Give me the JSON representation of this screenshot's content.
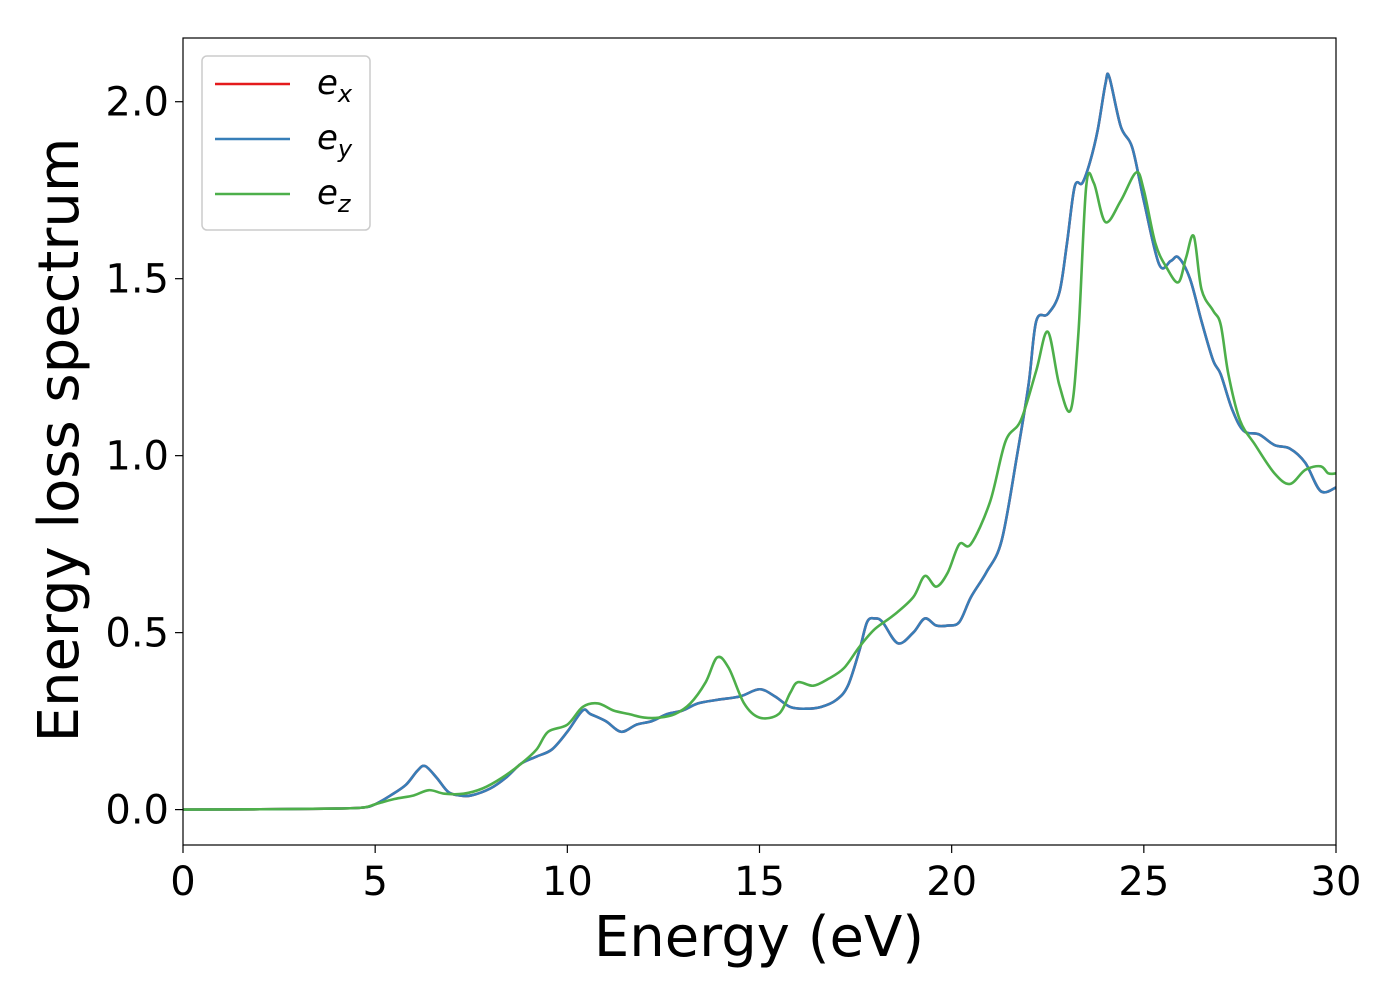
{
  "chart_data": {
    "type": "line",
    "xlabel": "Energy (eV)",
    "ylabel": "Energy loss spectrum",
    "xlim": [
      0,
      30
    ],
    "ylim": [
      -0.1,
      2.18
    ],
    "xticks": [
      0,
      5,
      10,
      15,
      20,
      25,
      30
    ],
    "xtick_labels": [
      "0",
      "5",
      "10",
      "15",
      "20",
      "25",
      "30"
    ],
    "yticks": [
      0.0,
      0.5,
      1.0,
      1.5,
      2.0
    ],
    "ytick_labels": [
      "0.0",
      "0.5",
      "1.0",
      "1.5",
      "2.0"
    ],
    "grid": false,
    "legend_position": "top-left",
    "series": [
      {
        "name": "e",
        "subscript": "x",
        "color": "#e41a1c",
        "x": [
          0,
          2,
          4,
          4.7,
          5.0,
          5.4,
          5.8,
          6.1,
          6.3,
          6.6,
          6.9,
          7.2,
          7.5,
          8.0,
          8.4,
          8.8,
          9.2,
          9.6,
          10.0,
          10.4,
          10.6,
          11.0,
          11.4,
          11.8,
          12.2,
          12.6,
          13.0,
          13.4,
          13.9,
          14.5,
          15.0,
          15.4,
          15.8,
          16.2,
          16.6,
          17.0,
          17.3,
          17.6,
          17.8,
          18.0,
          18.2,
          18.6,
          19.0,
          19.3,
          19.6,
          19.9,
          20.2,
          20.5,
          20.9,
          21.3,
          21.7,
          22.0,
          22.2,
          22.5,
          22.8,
          23.0,
          23.2,
          23.4,
          23.6,
          23.8,
          24.0,
          24.1,
          24.4,
          24.7,
          25.0,
          25.4,
          25.7,
          25.9,
          26.2,
          26.5,
          26.8,
          27.0,
          27.3,
          27.6,
          28.0,
          28.4,
          28.8,
          29.2,
          29.6,
          30.0
        ],
        "y": [
          0,
          0.001,
          0.003,
          0.006,
          0.015,
          0.04,
          0.07,
          0.11,
          0.123,
          0.09,
          0.05,
          0.04,
          0.04,
          0.06,
          0.09,
          0.13,
          0.15,
          0.17,
          0.22,
          0.28,
          0.27,
          0.25,
          0.22,
          0.24,
          0.25,
          0.27,
          0.28,
          0.3,
          0.31,
          0.32,
          0.34,
          0.32,
          0.29,
          0.285,
          0.29,
          0.31,
          0.35,
          0.45,
          0.53,
          0.54,
          0.53,
          0.47,
          0.5,
          0.54,
          0.52,
          0.52,
          0.53,
          0.6,
          0.67,
          0.76,
          1.0,
          1.2,
          1.38,
          1.4,
          1.46,
          1.6,
          1.76,
          1.77,
          1.83,
          1.92,
          2.05,
          2.07,
          1.93,
          1.87,
          1.72,
          1.54,
          1.55,
          1.56,
          1.5,
          1.38,
          1.27,
          1.23,
          1.13,
          1.07,
          1.06,
          1.03,
          1.02,
          0.98,
          0.9,
          0.91
        ]
      },
      {
        "name": "e",
        "subscript": "y",
        "color": "#377eb8",
        "x": [
          0,
          2,
          4,
          4.7,
          5.0,
          5.4,
          5.8,
          6.1,
          6.3,
          6.6,
          6.9,
          7.2,
          7.5,
          8.0,
          8.4,
          8.8,
          9.2,
          9.6,
          10.0,
          10.4,
          10.6,
          11.0,
          11.4,
          11.8,
          12.2,
          12.6,
          13.0,
          13.4,
          13.9,
          14.5,
          15.0,
          15.4,
          15.8,
          16.2,
          16.6,
          17.0,
          17.3,
          17.6,
          17.8,
          18.0,
          18.2,
          18.6,
          19.0,
          19.3,
          19.6,
          19.9,
          20.2,
          20.5,
          20.9,
          21.3,
          21.7,
          22.0,
          22.2,
          22.5,
          22.8,
          23.0,
          23.2,
          23.4,
          23.6,
          23.8,
          24.0,
          24.1,
          24.4,
          24.7,
          25.0,
          25.4,
          25.7,
          25.9,
          26.2,
          26.5,
          26.8,
          27.0,
          27.3,
          27.6,
          28.0,
          28.4,
          28.8,
          29.2,
          29.6,
          30.0
        ],
        "y": [
          0,
          0.001,
          0.003,
          0.006,
          0.015,
          0.04,
          0.07,
          0.11,
          0.123,
          0.09,
          0.05,
          0.04,
          0.04,
          0.06,
          0.09,
          0.13,
          0.15,
          0.17,
          0.22,
          0.28,
          0.27,
          0.25,
          0.22,
          0.24,
          0.25,
          0.27,
          0.28,
          0.3,
          0.31,
          0.32,
          0.34,
          0.32,
          0.29,
          0.285,
          0.29,
          0.31,
          0.35,
          0.45,
          0.53,
          0.54,
          0.53,
          0.47,
          0.5,
          0.54,
          0.52,
          0.52,
          0.53,
          0.6,
          0.67,
          0.76,
          1.0,
          1.2,
          1.38,
          1.4,
          1.46,
          1.6,
          1.76,
          1.77,
          1.83,
          1.92,
          2.05,
          2.07,
          1.93,
          1.87,
          1.72,
          1.54,
          1.55,
          1.56,
          1.5,
          1.38,
          1.27,
          1.23,
          1.13,
          1.07,
          1.06,
          1.03,
          1.02,
          0.98,
          0.9,
          0.91
        ]
      },
      {
        "name": "e",
        "subscript": "z",
        "color": "#4daf4a",
        "x": [
          0,
          2,
          4,
          4.7,
          5.0,
          5.5,
          6.0,
          6.4,
          6.8,
          7.3,
          7.8,
          8.3,
          8.8,
          9.2,
          9.5,
          10.0,
          10.4,
          10.8,
          11.2,
          11.6,
          12.0,
          12.4,
          12.8,
          13.2,
          13.6,
          13.9,
          14.2,
          14.6,
          15.0,
          15.5,
          15.8,
          16.0,
          16.4,
          16.8,
          17.2,
          17.6,
          18.0,
          18.5,
          19.0,
          19.3,
          19.6,
          19.9,
          20.2,
          20.5,
          21.0,
          21.4,
          21.8,
          22.2,
          22.5,
          22.8,
          23.1,
          23.3,
          23.5,
          23.7,
          24.0,
          24.4,
          24.8,
          25.0,
          25.3,
          25.6,
          25.9,
          26.1,
          26.3,
          26.5,
          26.8,
          27.0,
          27.2,
          27.5,
          27.9,
          28.4,
          28.8,
          29.2,
          29.6,
          29.8,
          30.0
        ],
        "y": [
          0,
          0.001,
          0.003,
          0.006,
          0.015,
          0.03,
          0.04,
          0.055,
          0.045,
          0.045,
          0.06,
          0.09,
          0.13,
          0.17,
          0.22,
          0.24,
          0.29,
          0.3,
          0.28,
          0.27,
          0.26,
          0.26,
          0.27,
          0.3,
          0.36,
          0.43,
          0.4,
          0.3,
          0.26,
          0.27,
          0.33,
          0.36,
          0.35,
          0.37,
          0.4,
          0.46,
          0.51,
          0.55,
          0.6,
          0.66,
          0.63,
          0.67,
          0.75,
          0.75,
          0.87,
          1.04,
          1.1,
          1.24,
          1.35,
          1.2,
          1.13,
          1.35,
          1.76,
          1.77,
          1.66,
          1.72,
          1.8,
          1.75,
          1.6,
          1.53,
          1.49,
          1.56,
          1.62,
          1.47,
          1.41,
          1.37,
          1.23,
          1.1,
          1.03,
          0.95,
          0.92,
          0.96,
          0.97,
          0.95,
          0.95
        ]
      }
    ]
  }
}
